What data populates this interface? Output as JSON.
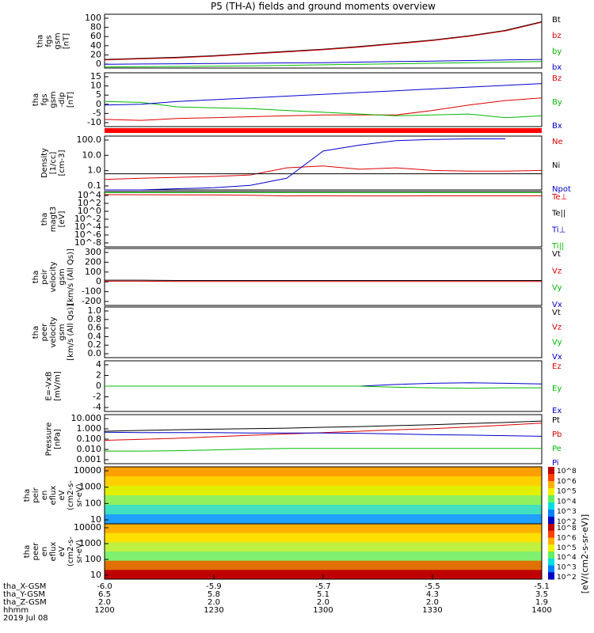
{
  "title": "P5 (TH-A) fields and ground moments overview",
  "colorbar_label": "[eV/(cm2-s-sr-eV)]",
  "chart_data": {
    "type": "line",
    "x_axis": {
      "ticks": [
        {
          "time": "1200",
          "x_gsm": "-6.0",
          "y_gsm": "6.5",
          "z_gsm": "2.0"
        },
        {
          "time": "1230",
          "x_gsm": "-5.9",
          "y_gsm": "5.8",
          "z_gsm": "2.0"
        },
        {
          "time": "1300",
          "x_gsm": "-5.7",
          "y_gsm": "5.1",
          "z_gsm": "2.0"
        },
        {
          "time": "1330",
          "x_gsm": "-5.5",
          "y_gsm": "4.3",
          "z_gsm": "2.0"
        },
        {
          "time": "1400",
          "x_gsm": "-5.1",
          "y_gsm": "3.5",
          "z_gsm": "1.9"
        }
      ],
      "row_labels": [
        "tha_X-GSM",
        "tha_Y-GSM",
        "tha_Z-GSM",
        "hhmm"
      ],
      "date": "2019 Jul 08"
    },
    "panels": [
      {
        "id": "fgs",
        "ylabel": [
          "tha",
          "fgs",
          "gsm",
          "[nT]"
        ],
        "ticks": [
          "100",
          "80",
          "60",
          "40",
          "20",
          "0"
        ],
        "legend": [
          {
            "name": "Bt",
            "color": "#000000"
          },
          {
            "name": "bz",
            "color": "#dd0000"
          },
          {
            "name": "by",
            "color": "#00bb00"
          },
          {
            "name": "bx",
            "color": "#0000cc"
          }
        ],
        "series": [
          {
            "name": "Bt",
            "color": "#000000",
            "values": [
              16,
              18,
              20,
              23,
              27,
              31,
              35,
              40,
              46,
              52,
              60,
              70,
              86
            ]
          },
          {
            "name": "bz",
            "color": "#dd0000",
            "values": [
              15,
              17,
              19,
              22,
              26,
              30,
              34,
              39,
              45,
              51,
              59,
              69,
              85
            ]
          },
          {
            "name": "by",
            "color": "#00bb00",
            "values": [
              2,
              2.5,
              3,
              3.5,
              4,
              5,
              6,
              7,
              8,
              9,
              10,
              11,
              12
            ]
          },
          {
            "name": "bx",
            "color": "#0000cc",
            "values": [
              7,
              7.5,
              8,
              8.5,
              9,
              9.5,
              10,
              11,
              12,
              13,
              14,
              15,
              16
            ]
          }
        ]
      },
      {
        "id": "fgs_dsl",
        "ylabel": [
          "tha",
          "fgs",
          "gsm",
          "-dip",
          "[nT]"
        ],
        "ticks": [
          "15",
          "10",
          "5",
          "0",
          "-5",
          "-10"
        ],
        "legend": [
          {
            "name": "Bz",
            "color": "#dd0000"
          },
          {
            "name": "By",
            "color": "#00bb00"
          },
          {
            "name": "Bx",
            "color": "#0000cc"
          }
        ],
        "series": [
          {
            "name": "Bz",
            "color": "#dd0000",
            "values": [
              -11,
              -11.5,
              -10.5,
              -10,
              -9.5,
              -9,
              -8.5,
              -8.5,
              -8.5,
              -6,
              -3,
              -0.5,
              1
            ]
          },
          {
            "name": "By",
            "color": "#00bb00",
            "values": [
              -1,
              -1.5,
              -4,
              -4.5,
              -5,
              -6,
              -7,
              -8,
              -9,
              -8.5,
              -8,
              -10,
              -9
            ]
          },
          {
            "name": "Bx",
            "color": "#0000cc",
            "values": [
              -3,
              -2.5,
              -1,
              0,
              1,
              2,
              3,
              4,
              5,
              6,
              7,
              8,
              9
            ]
          }
        ]
      },
      {
        "id": "density",
        "ylabel": [
          "Density",
          "[1/cc]",
          "[cm-3]"
        ],
        "ticks": [
          "100.0",
          "10.0",
          "1.0",
          "0.1"
        ],
        "legend": [
          {
            "name": "Ne",
            "color": "#dd0000"
          },
          {
            "name": "Ni",
            "color": "#000000"
          },
          {
            "name": "Npot",
            "color": "#0000cc"
          }
        ],
        "series": [
          {
            "name": "Ne",
            "color": "#dd0000",
            "values": [
              0.25,
              0.3,
              0.35,
              0.4,
              0.5,
              1.5,
              2.0,
              1.2,
              1.5,
              1.0,
              0.9,
              0.9,
              1.0
            ]
          },
          {
            "name": "Ni",
            "color": "#000000",
            "values": [
              0.6,
              0.6,
              0.6,
              0.6,
              0.6,
              0.6,
              0.6,
              0.6,
              0.6,
              0.6,
              0.6,
              0.6,
              0.6
            ]
          },
          {
            "name": "Npot",
            "color": "#0000cc",
            "values": [
              0.05,
              0.05,
              0.06,
              0.07,
              0.1,
              0.3,
              20,
              50,
              100,
              120,
              130,
              130,
              null
            ]
          }
        ]
      },
      {
        "id": "temp",
        "ylabel": [
          "tha",
          "magt3",
          "[eV]"
        ],
        "ticks": [
          "10^4",
          "10^2",
          "10^0",
          "10^-2",
          "10^-4",
          "10^-6",
          "10^-8"
        ],
        "legend": [
          {
            "name": "Te⊥",
            "color": "#dd0000"
          },
          {
            "name": "Te||",
            "color": "#000000"
          },
          {
            "name": "Ti⊥",
            "color": "#0000cc"
          },
          {
            "name": "Ti||",
            "color": "#00bb00"
          }
        ],
        "series": [
          {
            "name": "Te⊥",
            "color": "#dd0000",
            "values": [
              3000,
              2800,
              2600,
              2500,
              2200,
              1500,
              1600,
              1500,
              1500,
              1600,
              1600,
              1600,
              1600
            ]
          },
          {
            "name": "Ti||",
            "color": "#00bb00",
            "values": [
              9000,
              9000,
              9000,
              9000,
              9000,
              9000,
              9000,
              9000,
              9000,
              9000,
              9000,
              9000,
              9000
            ]
          }
        ]
      },
      {
        "id": "peir_vel",
        "ylabel": [
          "tha",
          "peir",
          "velocity",
          "gsm",
          "[km/s (All Qs)]"
        ],
        "ticks": [
          "300",
          "200",
          "100",
          "0",
          "-100",
          "-200"
        ],
        "legend": [
          {
            "name": "Vt",
            "color": "#000000"
          },
          {
            "name": "Vz",
            "color": "#dd0000"
          },
          {
            "name": "Vy",
            "color": "#00bb00"
          },
          {
            "name": "Vx",
            "color": "#0000cc"
          }
        ],
        "series": [
          {
            "name": "Vt",
            "color": "#000000",
            "values": [
              15,
              15,
              12,
              12,
              12,
              12,
              12,
              12,
              12,
              12,
              12,
              12,
              12
            ]
          },
          {
            "name": "Vz",
            "color": "#dd0000",
            "values": [
              5,
              5,
              3,
              2,
              2,
              2,
              2,
              2,
              2,
              2,
              2,
              2,
              2
            ]
          }
        ]
      },
      {
        "id": "peer_vel",
        "ylabel": [
          "tha",
          "peer",
          "velocity",
          "gsm",
          "[km/s (All Qs)]"
        ],
        "ticks": [
          "1.0",
          "0.8",
          "0.6",
          "0.4",
          "0.2",
          "0.0"
        ],
        "legend": [
          {
            "name": "Vt",
            "color": "#000000"
          },
          {
            "name": "Vz",
            "color": "#dd0000"
          },
          {
            "name": "Vy",
            "color": "#00bb00"
          },
          {
            "name": "Vx",
            "color": "#0000cc"
          }
        ],
        "series": []
      },
      {
        "id": "efield",
        "ylabel": [
          "E=-VxB",
          "[mV/m]"
        ],
        "ticks": [
          "4",
          "2",
          "0",
          "-2",
          "-4"
        ],
        "legend": [
          {
            "name": "Ez",
            "color": "#dd0000"
          },
          {
            "name": "Ey",
            "color": "#00bb00"
          },
          {
            "name": "Ex",
            "color": "#0000cc"
          }
        ],
        "series": [
          {
            "name": "Ex",
            "color": "#0000cc",
            "values": [
              0,
              0,
              0,
              0,
              0,
              0,
              0,
              0,
              0.3,
              0.5,
              0.6,
              0.5,
              0.4
            ]
          },
          {
            "name": "Ey",
            "color": "#00bb00",
            "values": [
              0,
              0,
              0,
              0,
              0,
              0,
              0,
              0,
              -0.2,
              -0.3,
              -0.4,
              -0.3,
              -0.3
            ]
          }
        ]
      },
      {
        "id": "pressure",
        "ylabel": [
          "Pressure",
          "[nPa]"
        ],
        "ticks": [
          "10.000",
          "1.000",
          "0.100",
          "0.010",
          "0.001"
        ],
        "legend": [
          {
            "name": "Pt",
            "color": "#000000"
          },
          {
            "name": "Pb",
            "color": "#dd0000"
          },
          {
            "name": "Pe",
            "color": "#00bb00"
          },
          {
            "name": "Pi",
            "color": "#0000cc"
          }
        ],
        "series": [
          {
            "name": "Pt",
            "color": "#000000",
            "values": [
              0.6,
              0.7,
              0.8,
              0.9,
              1.0,
              1.1,
              1.3,
              1.5,
              1.8,
              2.2,
              2.7,
              3.4,
              4.5
            ]
          },
          {
            "name": "Pb",
            "color": "#dd0000",
            "values": [
              0.1,
              0.12,
              0.15,
              0.2,
              0.27,
              0.35,
              0.45,
              0.6,
              0.8,
              1.0,
              1.4,
              2.0,
              3.0
            ]
          },
          {
            "name": "Pe",
            "color": "#00bb00",
            "values": [
              0.012,
              0.012,
              0.013,
              0.015,
              0.018,
              0.02,
              0.02,
              0.02,
              0.02,
              0.02,
              0.02,
              0.02,
              0.02
            ]
          },
          {
            "name": "Pi",
            "color": "#0000cc",
            "values": [
              0.5,
              0.45,
              0.45,
              0.45,
              0.42,
              0.42,
              0.42,
              0.4,
              0.35,
              0.3,
              0.28,
              0.25,
              0.22
            ]
          }
        ]
      },
      {
        "id": "peir_flux",
        "ylabel": [
          "tha",
          "peir",
          "en",
          "eflux",
          "eV",
          "(cm2-s-",
          "sr-eV)"
        ],
        "ticks": [
          "10000",
          "1000",
          "100",
          "10"
        ],
        "colorbar_ticks": [
          "10^8",
          "10^6",
          "10^5",
          "10^4",
          "10^3",
          "10^2"
        ]
      },
      {
        "id": "peer_flux",
        "ylabel": [
          "tha",
          "peer",
          "en",
          "eflux",
          "eV",
          "(cm2-s-",
          "sr-eV)"
        ],
        "ticks": [
          "10000",
          "1000",
          "100",
          "10"
        ],
        "colorbar_ticks": [
          "10^8",
          "10^6",
          "10^5",
          "10^4",
          "10^3",
          "10^2"
        ]
      }
    ]
  }
}
